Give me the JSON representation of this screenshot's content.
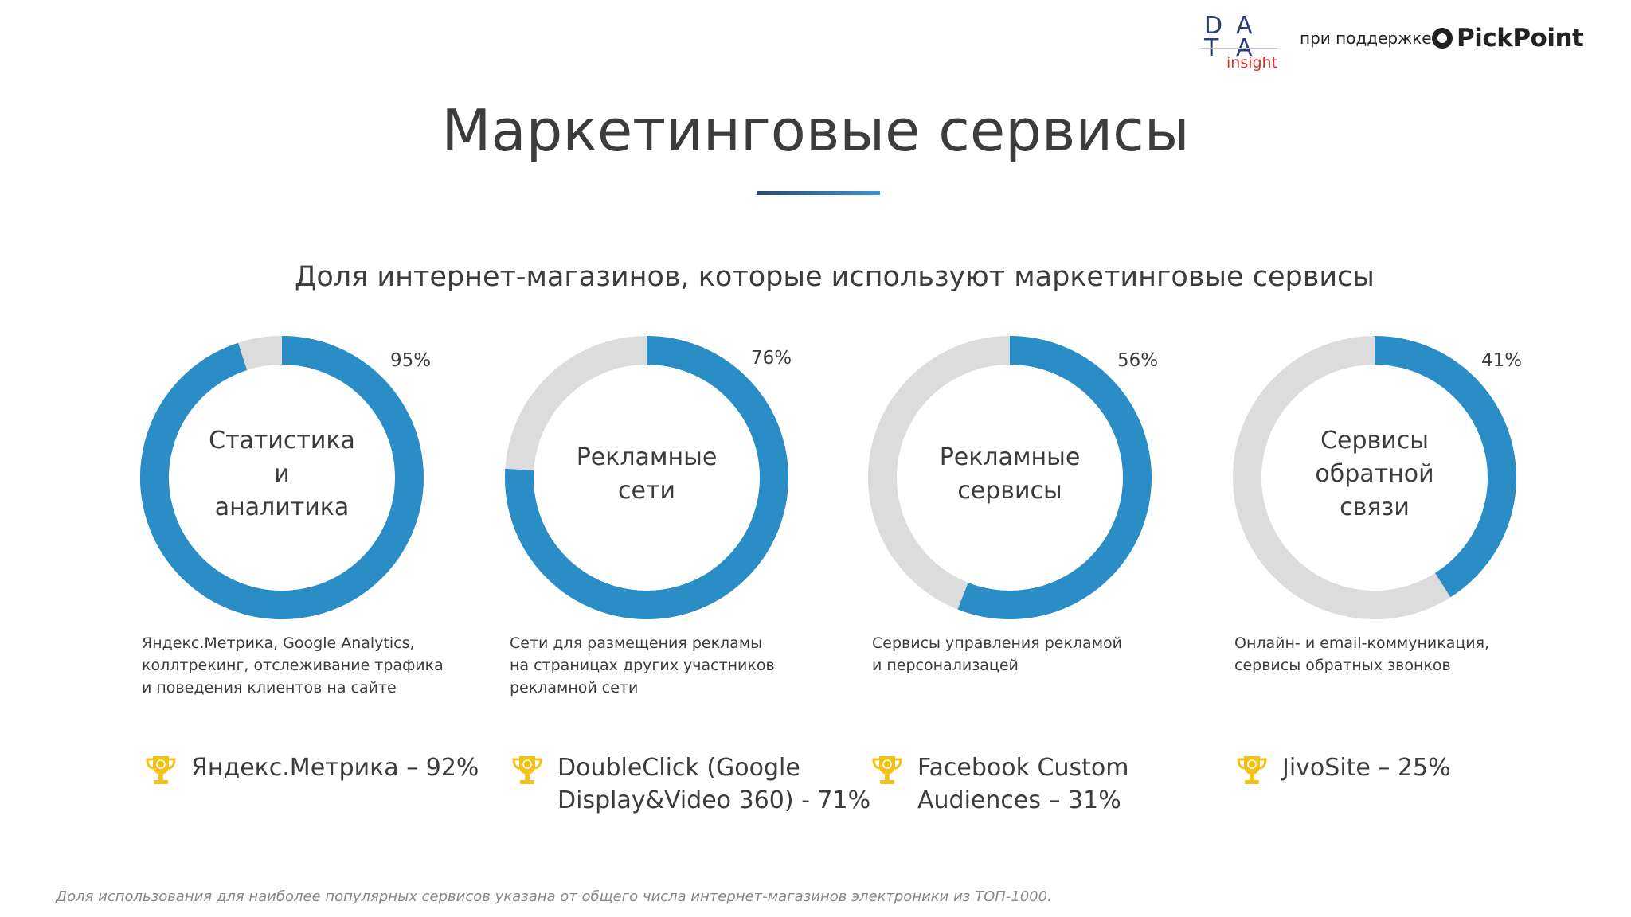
{
  "header": {
    "data_logo_letters": [
      "D",
      "A",
      "T",
      "A"
    ],
    "data_logo_sub": "insight",
    "support_text": "при поддержке",
    "partner_logo": "PickPoint"
  },
  "title": "Маркетинговые сервисы",
  "subtitle": "Доля интернет-магазинов, которые используют маркетинговые сервисы",
  "colors": {
    "filled": "#2a8dc5",
    "empty": "#dcdcdc",
    "trophy": "#f2c21b"
  },
  "chart_data": [
    {
      "type": "pie",
      "title": "",
      "center_label": [
        "Статистика",
        "и",
        "аналитика"
      ],
      "value": 95,
      "value_label": "95%",
      "description": [
        "Яндекс.Метрика, Google Analytics,",
        "коллтрекинг, отслеживание трафика",
        "и поведения клиентов на сайте"
      ],
      "leader": [
        "Яндекс.Метрика – 92%"
      ]
    },
    {
      "type": "pie",
      "title": "",
      "center_label": [
        "Рекламные",
        "сети"
      ],
      "value": 76,
      "value_label": "76%",
      "description": [
        "Сети для размещения рекламы",
        "на страницах других участников",
        "рекламной сети"
      ],
      "leader": [
        "DoubleClick (Google",
        "Display&Video 360) - 71%"
      ]
    },
    {
      "type": "pie",
      "title": "",
      "center_label": [
        "Рекламные",
        "сервисы"
      ],
      "value": 56,
      "value_label": "56%",
      "description": [
        "Сервисы управления рекламой",
        "и персонализацей"
      ],
      "leader": [
        "Facebook Custom",
        "Audiences – 31%"
      ]
    },
    {
      "type": "pie",
      "title": "",
      "center_label": [
        "Сервисы",
        "обратной",
        "связи"
      ],
      "value": 41,
      "value_label": "41%",
      "description": [
        "Онлайн- и email-коммуникация,",
        "сервисы обратных звонков"
      ],
      "leader": [
        "JivoSite – 25%"
      ]
    }
  ],
  "footnote": "Доля использования для наиболее популярных сервисов указана от общего числа интернет-магазинов электроники из ТОП-1000.",
  "icons": {
    "leader_icon": "trophy-icon",
    "partner_icon": "pickpoint-logo-icon"
  }
}
